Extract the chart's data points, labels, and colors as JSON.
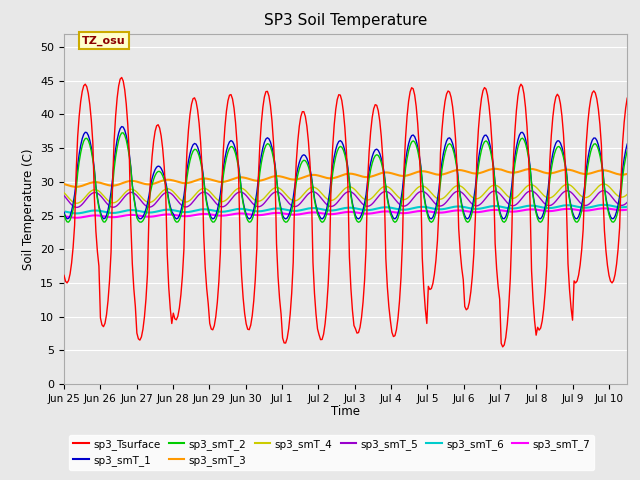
{
  "title": "SP3 Soil Temperature",
  "ylabel": "Soil Temperature (C)",
  "xlabel": "Time",
  "ylim": [
    0,
    52
  ],
  "yticks": [
    0,
    5,
    10,
    15,
    20,
    25,
    30,
    35,
    40,
    45,
    50
  ],
  "background_color": "#e8e8e8",
  "fig_background": "#e8e8e8",
  "tz_label": "TZ_osu",
  "series_colors": {
    "sp3_Tsurface": "#ff0000",
    "sp3_smT_1": "#0000cc",
    "sp3_smT_2": "#00cc00",
    "sp3_smT_3": "#ff9900",
    "sp3_smT_4": "#cccc00",
    "sp3_smT_5": "#9900cc",
    "sp3_smT_6": "#00cccc",
    "sp3_smT_7": "#ff00ff"
  },
  "x_tick_labels": [
    "Jun 25",
    "Jun 26",
    "Jun 27",
    "Jun 28",
    "Jun 29",
    "Jun 30",
    "Jul 1",
    "Jul 2",
    "Jul 3",
    "Jul 4",
    "Jul 5",
    "Jul 6",
    "Jul 7",
    "Jul 8",
    "Jul 9",
    "Jul 10"
  ],
  "n_days": 15.5
}
